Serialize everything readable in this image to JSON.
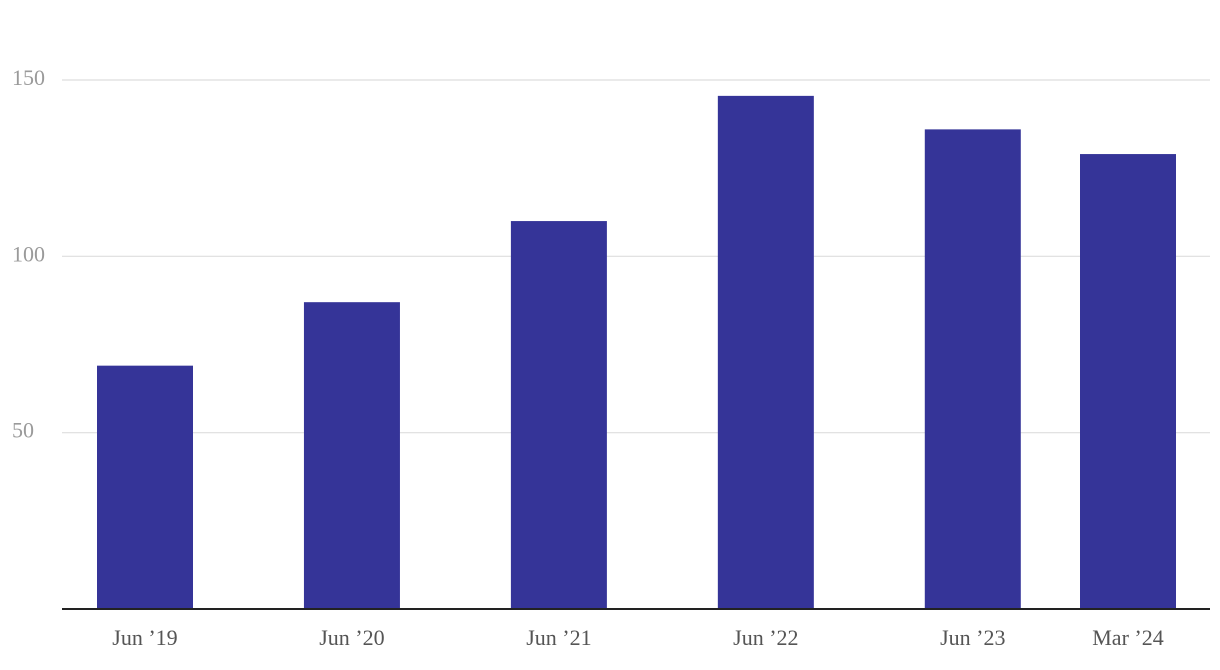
{
  "chart_data": {
    "type": "bar",
    "categories": [
      "Jun ’19",
      "Jun ’20",
      "Jun ’21",
      "Jun ’22",
      "Jun ’23",
      "Mar ’24"
    ],
    "values": [
      69,
      87,
      110,
      145.5,
      136,
      129
    ],
    "color": "#353498",
    "ylim": [
      0,
      150
    ],
    "yticks": [
      50,
      100,
      150
    ],
    "grid": true
  }
}
